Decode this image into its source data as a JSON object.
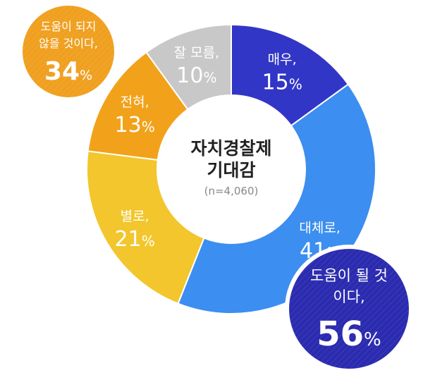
{
  "chart_data": {
    "type": "pie",
    "title": "자치경찰제 기대감",
    "title_lines": [
      "자치경찰제",
      "기대감"
    ],
    "sample": "(n=4,060)",
    "slices": [
      {
        "name_text": "매우,",
        "value": 15,
        "pct_text": "15",
        "unit": "%",
        "color": "#3236c6"
      },
      {
        "name_text": "대체로,",
        "value": 41,
        "pct_text": "41",
        "unit": "%",
        "color": "#3c8ef0"
      },
      {
        "name_text": "별로,",
        "value": 21,
        "pct_text": "21",
        "unit": "%",
        "color": "#f2c62c"
      },
      {
        "name_text": "전혀,",
        "value": 13,
        "pct_text": "13",
        "unit": "%",
        "color": "#f2a21a"
      },
      {
        "name_text": "잘 모름,",
        "value": 10,
        "pct_text": "10",
        "unit": "%",
        "color": "#c8c8c8"
      }
    ],
    "summaries": [
      {
        "lines": [
          "도움이 될 것",
          "이다,"
        ],
        "value_text": "56",
        "unit": "%",
        "color": "#2b2bb0"
      },
      {
        "lines": [
          "도움이 되지",
          "않을 것이다,"
        ],
        "value_text": "34",
        "unit": "%",
        "color": "#f0a020"
      }
    ]
  }
}
